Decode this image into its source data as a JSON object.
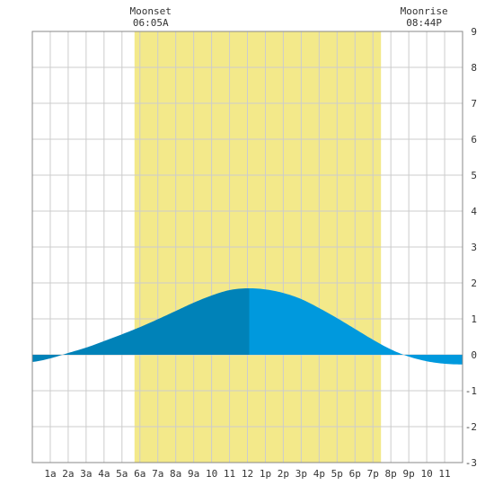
{
  "chart_data": {
    "type": "area",
    "title": "",
    "xlabel": "",
    "ylabel": "",
    "x_tick_labels": [
      "1a",
      "2a",
      "3a",
      "4a",
      "5a",
      "6a",
      "7a",
      "8a",
      "9a",
      "10",
      "11",
      "12",
      "1p",
      "2p",
      "3p",
      "4p",
      "5p",
      "6p",
      "7p",
      "8p",
      "9p",
      "10",
      "11"
    ],
    "xlim_hours": [
      0,
      24
    ],
    "ylim": [
      -3,
      9
    ],
    "y_ticks": [
      -3,
      -2,
      -1,
      0,
      1,
      2,
      3,
      4,
      5,
      6,
      7,
      8,
      9
    ],
    "grid": true,
    "moon_events": [
      {
        "label": "Moonset",
        "time": "06:05A"
      },
      {
        "label": "Moonrise",
        "time": "08:44P"
      }
    ],
    "shaded_period_hours": [
      5.7,
      19.45
    ],
    "series": [
      {
        "hour": [
          0,
          1,
          2,
          3,
          4,
          5,
          6,
          7,
          8,
          9,
          10,
          11,
          12,
          13,
          14,
          15,
          16,
          17,
          18,
          19,
          20,
          21,
          22,
          23,
          24
        ],
        "value": [
          -0.2,
          -0.1,
          0.05,
          0.2,
          0.38,
          0.57,
          0.77,
          0.99,
          1.22,
          1.45,
          1.65,
          1.8,
          1.85,
          1.82,
          1.72,
          1.55,
          1.3,
          1.02,
          0.72,
          0.42,
          0.15,
          -0.05,
          -0.18,
          -0.25,
          -0.27
        ]
      }
    ],
    "colors": {
      "highlight": "#f3e98a",
      "area_rising": "#0082b8",
      "area_falling": "#0099dd",
      "grid": "#cccccc",
      "frame": "#888888"
    }
  }
}
